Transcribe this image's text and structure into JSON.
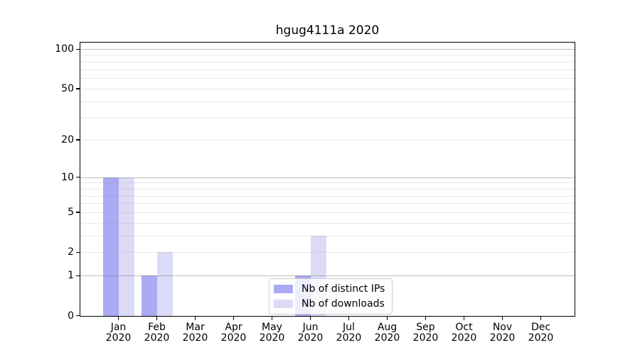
{
  "chart_data": {
    "type": "bar",
    "title": "hgug4111a 2020",
    "categories": [
      "Jan",
      "Feb",
      "Mar",
      "Apr",
      "May",
      "Jun",
      "Jul",
      "Aug",
      "Sep",
      "Oct",
      "Nov",
      "Dec"
    ],
    "x_year_label": "2020",
    "series": [
      {
        "name": "Nb of distinct IPs",
        "color": "#aaaaf5",
        "values": [
          10,
          1,
          0,
          0,
          0,
          1,
          0,
          0,
          0,
          0,
          0,
          0
        ]
      },
      {
        "name": "Nb of downloads",
        "color": "#dbdbf8",
        "values": [
          10,
          2,
          0,
          0,
          0,
          3,
          0,
          0,
          0,
          0,
          0,
          0
        ]
      }
    ],
    "y_ticks": [
      0,
      1,
      2,
      5,
      10,
      20,
      50,
      100
    ],
    "y_scale": "log1p",
    "ylim": [
      0,
      112
    ],
    "xlabel": "",
    "ylabel": "",
    "grid": "horizontal, major (1,10,100) + minor (2-9, 20-90), drawn over bars",
    "legend_position": "lower center"
  }
}
